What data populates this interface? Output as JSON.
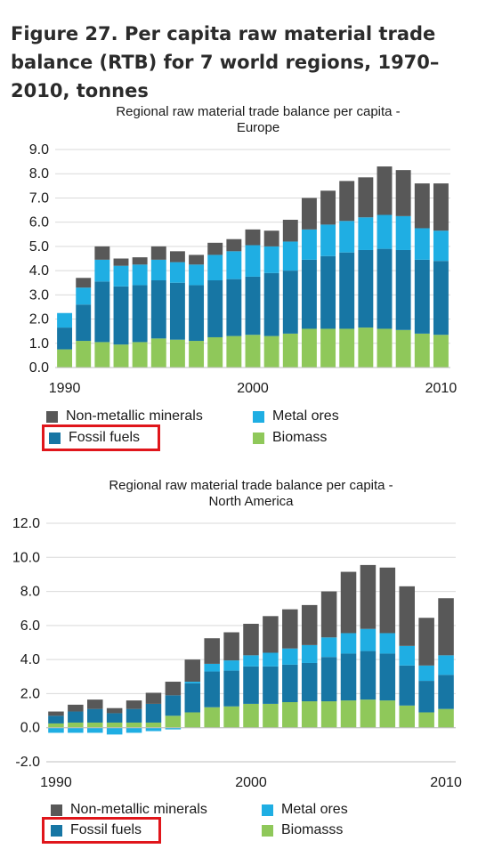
{
  "figure_title": "Figure 27.  Per capita raw material trade balance (RTB) for 7 world regions, 1970–2010, tonnes",
  "colors": {
    "non_metallic_minerals": "#585858",
    "metal_ores": "#1faee3",
    "fossil_fuels": "#1776a4",
    "biomass": "#8fc85a",
    "highlight": "#e0161b"
  },
  "chart_data": [
    {
      "type": "bar",
      "stacked": true,
      "title": "Regional raw material trade balance per capita - Europe",
      "title_lines": [
        "Regional raw material trade balance per capita -",
        "Europe"
      ],
      "x": [
        1990,
        1991,
        1992,
        1993,
        1994,
        1995,
        1996,
        1997,
        1998,
        1999,
        2000,
        2001,
        2002,
        2003,
        2004,
        2005,
        2006,
        2007,
        2008,
        2009,
        2010
      ],
      "x_tick_labels": [
        "1990",
        "2000",
        "2010"
      ],
      "y_tick_labels": [
        "0.0",
        "1.0",
        "2.0",
        "3.0",
        "4.0",
        "5.0",
        "6.0",
        "7.0",
        "8.0",
        "9.0"
      ],
      "ylim": [
        0,
        9
      ],
      "grid": true,
      "series": [
        {
          "name": "Biomass",
          "color_key": "biomass",
          "values": [
            0.75,
            1.1,
            1.05,
            0.95,
            1.05,
            1.2,
            1.15,
            1.1,
            1.25,
            1.3,
            1.35,
            1.3,
            1.4,
            1.6,
            1.6,
            1.6,
            1.65,
            1.6,
            1.55,
            1.4,
            1.35
          ]
        },
        {
          "name": "Fossil fuels",
          "color_key": "fossil_fuels",
          "values": [
            0.9,
            1.5,
            2.5,
            2.4,
            2.35,
            2.4,
            2.35,
            2.3,
            2.35,
            2.35,
            2.4,
            2.6,
            2.6,
            2.85,
            3.0,
            3.15,
            3.2,
            3.3,
            3.3,
            3.05,
            3.05
          ]
        },
        {
          "name": "Metal ores",
          "color_key": "metal_ores",
          "values": [
            0.6,
            0.7,
            0.9,
            0.85,
            0.85,
            0.85,
            0.85,
            0.85,
            1.05,
            1.15,
            1.3,
            1.1,
            1.2,
            1.25,
            1.3,
            1.3,
            1.35,
            1.4,
            1.4,
            1.3,
            1.25
          ]
        },
        {
          "name": "Non-metallic minerals",
          "color_key": "non_metallic_minerals",
          "values": [
            0.0,
            0.4,
            0.55,
            0.3,
            0.3,
            0.55,
            0.45,
            0.4,
            0.5,
            0.5,
            0.65,
            0.65,
            0.9,
            1.3,
            1.4,
            1.65,
            1.65,
            2.0,
            1.9,
            1.85,
            1.95
          ]
        }
      ],
      "legend": [
        "Non-metallic minerals",
        "Metal ores",
        "Fossil fuels",
        "Biomass"
      ],
      "legend_placement": "bottom",
      "highlighted_legend_entry": "Fossil fuels"
    },
    {
      "type": "bar",
      "stacked": true,
      "title": "Regional raw material trade balance per capita - North America",
      "title_lines": [
        "Regional raw material trade balance per capita -",
        "North America"
      ],
      "x": [
        1990,
        1991,
        1992,
        1993,
        1994,
        1995,
        1996,
        1997,
        1998,
        1999,
        2000,
        2001,
        2002,
        2003,
        2004,
        2005,
        2006,
        2007,
        2008,
        2009,
        2010
      ],
      "x_tick_labels": [
        "1990",
        "2000",
        "2010"
      ],
      "y_tick_labels": [
        "-2.0",
        "0.0",
        "2.0",
        "4.0",
        "6.0",
        "8.0",
        "10.0",
        "12.0"
      ],
      "ylim": [
        -2,
        12
      ],
      "grid": true,
      "series": [
        {
          "name": "Biomasss",
          "color_key": "biomass",
          "values": [
            0.25,
            0.3,
            0.3,
            0.3,
            0.3,
            0.3,
            0.7,
            0.9,
            1.2,
            1.25,
            1.4,
            1.4,
            1.5,
            1.55,
            1.55,
            1.6,
            1.65,
            1.6,
            1.3,
            0.9,
            1.1
          ]
        },
        {
          "name": "Fossil fuels",
          "color_key": "fossil_fuels",
          "values": [
            0.45,
            0.65,
            0.8,
            0.55,
            0.8,
            1.1,
            1.2,
            1.7,
            2.1,
            2.1,
            2.2,
            2.2,
            2.2,
            2.25,
            2.6,
            2.75,
            2.85,
            2.75,
            2.35,
            1.85,
            2.0
          ]
        },
        {
          "name": "Metal ores",
          "color_key": "metal_ores",
          "values": [
            -0.3,
            -0.3,
            -0.3,
            -0.4,
            -0.3,
            -0.2,
            -0.1,
            0.1,
            0.45,
            0.6,
            0.65,
            0.8,
            0.95,
            1.05,
            1.15,
            1.2,
            1.3,
            1.2,
            1.15,
            0.9,
            1.15
          ]
        },
        {
          "name": "Non-metallic minerals",
          "color_key": "non_metallic_minerals",
          "values": [
            0.25,
            0.4,
            0.55,
            0.3,
            0.5,
            0.65,
            0.8,
            1.3,
            1.5,
            1.65,
            1.85,
            2.15,
            2.3,
            2.35,
            2.7,
            3.6,
            3.75,
            3.85,
            3.5,
            2.8,
            3.35
          ]
        }
      ],
      "legend": [
        "Non-metallic minerals",
        "Metal ores",
        "Fossil fuels",
        "Biomasss"
      ],
      "legend_placement": "bottom",
      "highlighted_legend_entry": "Fossil fuels"
    }
  ]
}
